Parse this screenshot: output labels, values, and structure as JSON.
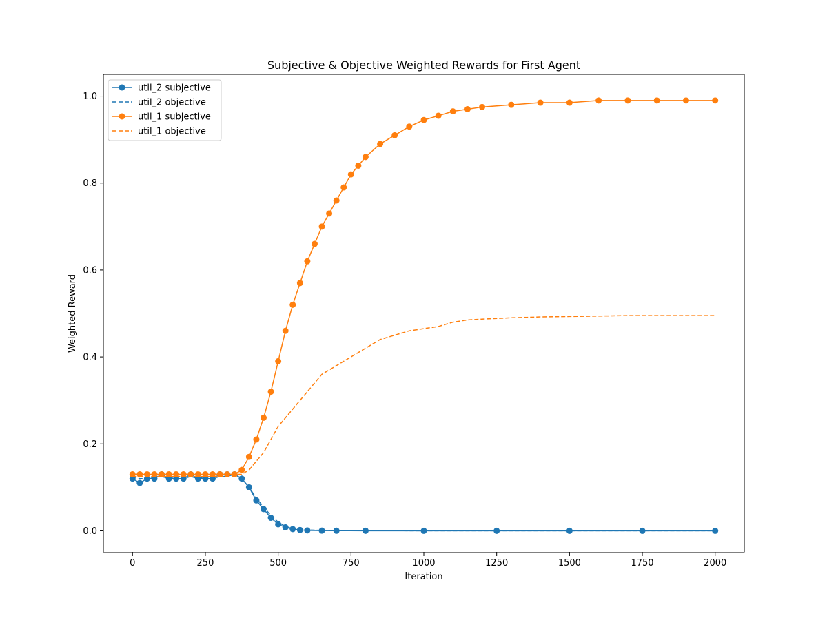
{
  "chart_data": {
    "type": "line",
    "title": "Subjective & Objective Weighted Rewards for First Agent",
    "xlabel": "Iteration",
    "ylabel": "Weighted Reward",
    "xlim": [
      -100,
      2100
    ],
    "ylim": [
      -0.05,
      1.05
    ],
    "xticks": [
      0,
      250,
      500,
      750,
      1000,
      1250,
      1500,
      1750,
      2000
    ],
    "yticks": [
      0.0,
      0.2,
      0.4,
      0.6,
      0.8,
      1.0
    ],
    "xtick_labels": [
      "0",
      "250",
      "500",
      "750",
      "1000",
      "1250",
      "1500",
      "1750",
      "2000"
    ],
    "ytick_labels": [
      "0.0",
      "0.2",
      "0.4",
      "0.6",
      "0.8",
      "1.0"
    ],
    "grid": false,
    "legend_position": "top-left",
    "series": [
      {
        "name": "util_2 subjective",
        "style": "solid-marker",
        "color": "#1f77b4",
        "x": [
          0,
          25,
          50,
          75,
          100,
          125,
          150,
          175,
          200,
          225,
          250,
          275,
          300,
          325,
          350,
          375,
          400,
          425,
          450,
          475,
          500,
          525,
          550,
          575,
          600,
          650,
          700,
          800,
          1000,
          1250,
          1500,
          1750,
          2000
        ],
        "y": [
          0.12,
          0.11,
          0.12,
          0.12,
          0.13,
          0.12,
          0.12,
          0.12,
          0.13,
          0.12,
          0.12,
          0.12,
          0.13,
          0.13,
          0.13,
          0.12,
          0.1,
          0.07,
          0.05,
          0.03,
          0.015,
          0.008,
          0.004,
          0.002,
          0.001,
          0.0005,
          0.0003,
          0.0002,
          0.0001,
          0.0001,
          0.0001,
          0.0001,
          0.0001
        ]
      },
      {
        "name": "util_2 objective",
        "style": "dashed",
        "color": "#1f77b4",
        "x": [
          0,
          25,
          50,
          75,
          100,
          125,
          150,
          175,
          200,
          225,
          250,
          275,
          300,
          325,
          350,
          375,
          400,
          425,
          450,
          475,
          500,
          525,
          550,
          575,
          600,
          650,
          700,
          800,
          1000,
          1250,
          1500,
          1750,
          2000
        ],
        "y": [
          0.125,
          0.12,
          0.12,
          0.125,
          0.125,
          0.12,
          0.125,
          0.12,
          0.125,
          0.12,
          0.125,
          0.12,
          0.125,
          0.125,
          0.13,
          0.12,
          0.1,
          0.075,
          0.055,
          0.035,
          0.02,
          0.01,
          0.005,
          0.003,
          0.002,
          0.001,
          0.0005,
          0.0003,
          0.0002,
          0.0001,
          0.0001,
          0.0001,
          0.0001
        ]
      },
      {
        "name": "util_1 subjective",
        "style": "solid-marker",
        "color": "#ff7f0e",
        "x": [
          0,
          25,
          50,
          75,
          100,
          125,
          150,
          175,
          200,
          225,
          250,
          275,
          300,
          325,
          350,
          375,
          400,
          425,
          450,
          475,
          500,
          525,
          550,
          575,
          600,
          625,
          650,
          675,
          700,
          725,
          750,
          775,
          800,
          850,
          900,
          950,
          1000,
          1050,
          1100,
          1150,
          1200,
          1300,
          1400,
          1500,
          1600,
          1700,
          1800,
          1900,
          2000
        ],
        "y": [
          0.13,
          0.13,
          0.13,
          0.13,
          0.13,
          0.13,
          0.13,
          0.13,
          0.13,
          0.13,
          0.13,
          0.13,
          0.13,
          0.13,
          0.13,
          0.14,
          0.17,
          0.21,
          0.26,
          0.32,
          0.39,
          0.46,
          0.52,
          0.57,
          0.62,
          0.66,
          0.7,
          0.73,
          0.76,
          0.79,
          0.82,
          0.84,
          0.86,
          0.89,
          0.91,
          0.93,
          0.945,
          0.955,
          0.965,
          0.97,
          0.975,
          0.98,
          0.985,
          0.985,
          0.99,
          0.99,
          0.99,
          0.99,
          0.99
        ]
      },
      {
        "name": "util_1 objective",
        "style": "dashed",
        "color": "#ff7f0e",
        "x": [
          0,
          25,
          50,
          75,
          100,
          125,
          150,
          175,
          200,
          225,
          250,
          275,
          300,
          325,
          350,
          375,
          400,
          425,
          450,
          475,
          500,
          525,
          550,
          575,
          600,
          625,
          650,
          675,
          700,
          725,
          750,
          775,
          800,
          850,
          900,
          950,
          1000,
          1050,
          1100,
          1150,
          1200,
          1300,
          1400,
          1500,
          1600,
          1700,
          1800,
          1900,
          2000
        ],
        "y": [
          0.125,
          0.125,
          0.125,
          0.125,
          0.125,
          0.125,
          0.125,
          0.125,
          0.125,
          0.125,
          0.125,
          0.125,
          0.125,
          0.125,
          0.13,
          0.13,
          0.14,
          0.16,
          0.18,
          0.21,
          0.24,
          0.26,
          0.28,
          0.3,
          0.32,
          0.34,
          0.36,
          0.37,
          0.38,
          0.39,
          0.4,
          0.41,
          0.42,
          0.44,
          0.45,
          0.46,
          0.465,
          0.47,
          0.48,
          0.485,
          0.487,
          0.49,
          0.492,
          0.493,
          0.494,
          0.495,
          0.495,
          0.495,
          0.495
        ]
      }
    ]
  }
}
